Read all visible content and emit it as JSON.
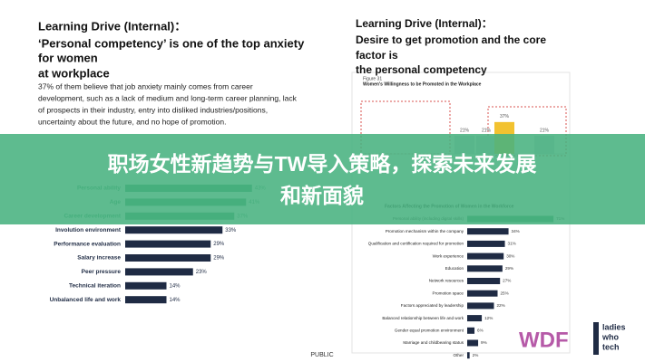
{
  "left_panel": {
    "title_lines": [
      "Learning Drive (Internal)：",
      "‘Personal competency’ is one of the top anxiety",
      "for women",
      "at workplace"
    ],
    "paragraph_lines": [
      "37% of them believe that job anxiety mainly comes from career",
      "development, such as a lack of medium and long-term career planning, lack",
      "of prospects in their industry, entry into disliked industries/positions,",
      "uncertainty about the future, and no hope of promotion."
    ],
    "chart": {
      "type": "bar",
      "categories": [
        "Personal ability",
        "Age",
        "Career development",
        "Involution environment",
        "Performance evaluation",
        "Salary increase",
        "Peer pressure",
        "Technical iteration",
        "Unbalanced life and work"
      ],
      "values": [
        43,
        41,
        37,
        33,
        29,
        29,
        23,
        14,
        14
      ],
      "value_labels": [
        "43%",
        "41%",
        "37%",
        "33%",
        "29%",
        "29%",
        "23%",
        "14%",
        "14%"
      ],
      "colors": [
        "#3c9a6e",
        "#3c9a6e",
        "#3c9a6e",
        "#1f2b44",
        "#1f2b44",
        "#1f2b44",
        "#1f2b44",
        "#1f2b44",
        "#1f2b44"
      ]
    }
  },
  "right_panel": {
    "title_lines": [
      "Learning Drive (Internal)：",
      "Desire to get promotion and the core",
      "factor is",
      "the personal competency"
    ],
    "figure": {
      "type": "column",
      "label": "Figure 31",
      "title": "Women's Willingness to be Promoted in the Workplace",
      "values": [
        21,
        21,
        37,
        21
      ],
      "value_labels": [
        "21%",
        "21%",
        "37%",
        "21%"
      ],
      "colors": [
        "#cfd3d8",
        "#cfd3d8",
        "#f2c230",
        "#cfd3d8"
      ]
    },
    "chart": {
      "type": "bar",
      "title": "Factors Affecting the Promotion of Women in the Workforce",
      "categories": [
        "Personal ability (including digital skills)",
        "Promotion mechanism within the company",
        "Qualification and certification required for promotion",
        "Work experience",
        "Education",
        "Network resources",
        "Promotion space",
        "Factors appreciated by leadership",
        "Balanced relationship between life and work",
        "Gender equal promotion environment",
        "Marriage and childbearing status",
        "Other"
      ],
      "values": [
        71,
        34,
        31,
        30,
        29,
        27,
        25,
        22,
        12,
        6,
        9,
        2
      ],
      "value_labels": [
        "71%",
        "34%",
        "31%",
        "30%",
        "29%",
        "27%",
        "25%",
        "22%",
        "12%",
        "6%",
        "9%",
        "2%"
      ],
      "colors": [
        "#3c9a6e",
        "#1f2b44",
        "#1f2b44",
        "#1f2b44",
        "#1f2b44",
        "#1f2b44",
        "#1f2b44",
        "#1f2b44",
        "#1f2b44",
        "#1f2b44",
        "#1f2b44",
        "#1f2b44"
      ]
    }
  },
  "banner": {
    "lines": [
      "职场女性新趋势与TW导入策略，探索未来发展",
      "和新面貌"
    ]
  },
  "footer": {
    "classification": "PUBLIC",
    "logo_wdf": "WDF",
    "logo_lwt_lines": [
      "ladies",
      "who",
      "tech"
    ]
  }
}
